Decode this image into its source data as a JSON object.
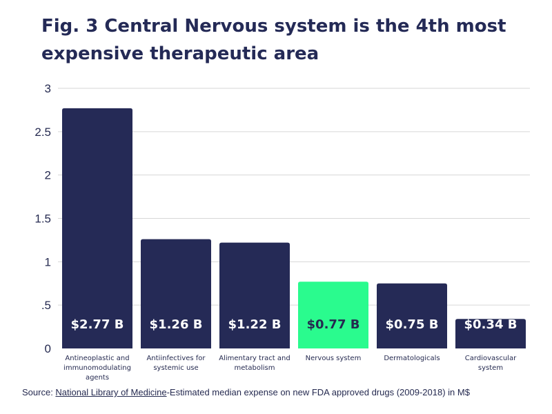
{
  "title_lines": [
    "Fig. 3 Central Nervous system is the 4th most",
    "expensive therapeutic area"
  ],
  "source": {
    "prefix": "Source: ",
    "link_text": "National Library of Medicine",
    "suffix": "-Estimated median expense on new FDA approved drugs (2009-2018) in M$"
  },
  "colors": {
    "bar": "#252a56",
    "highlight": "#2afb8e",
    "grid": "#d6d6d6",
    "text": "#252a50"
  },
  "chart_data": {
    "type": "bar",
    "title": "Fig. 3 Central Nervous system is the 4th most expensive therapeutic area",
    "categories": [
      [
        "Antineoplastic and",
        "immunomodulating",
        "agents"
      ],
      [
        "Antiinfectives for",
        "systemic use"
      ],
      [
        "Alimentary tract and",
        "metabolism"
      ],
      [
        "Nervous system"
      ],
      [
        "Dermatologicals"
      ],
      [
        "Cardiovascular",
        "system"
      ]
    ],
    "values": [
      2.77,
      1.26,
      1.22,
      0.77,
      0.75,
      0.34
    ],
    "data_labels": [
      "$2.77 B",
      "$1.26 B",
      "$1.22 B",
      "$0.77 B",
      "$0.75 B",
      "$0.34 B"
    ],
    "highlight_index": 3,
    "yticks": [
      "0",
      ".5",
      "1",
      "1.5",
      "2",
      "2.5",
      "3"
    ],
    "ytick_values": [
      0,
      0.5,
      1,
      1.5,
      2,
      2.5,
      3
    ],
    "ylim": [
      0,
      3
    ],
    "xlabel": "",
    "ylabel": "",
    "grid": true,
    "legend": "none"
  }
}
